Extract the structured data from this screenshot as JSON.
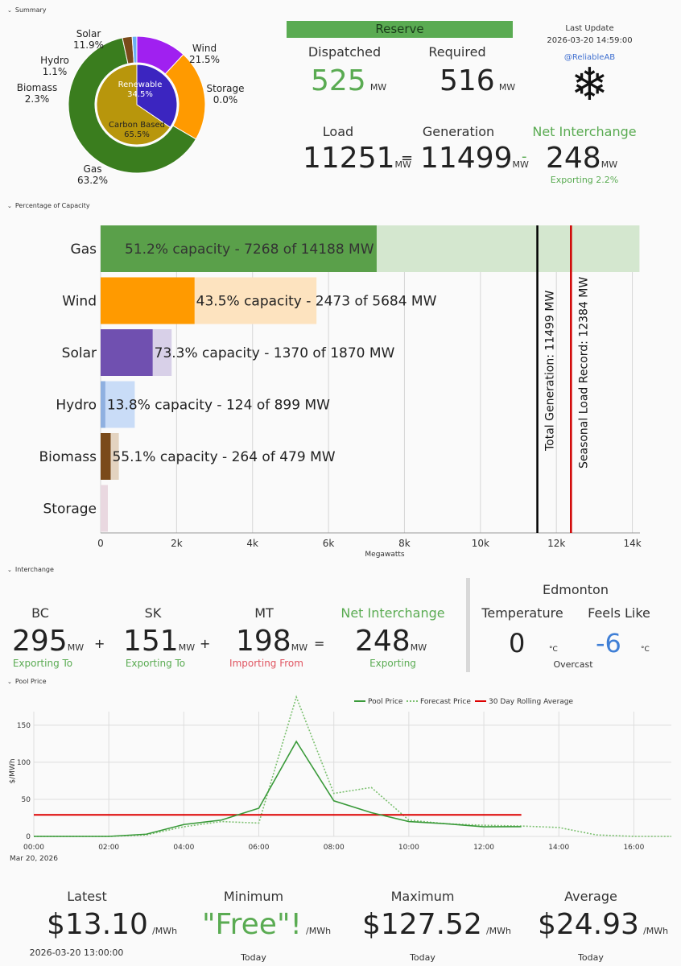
{
  "sections": {
    "summary": "Summary",
    "capacity": "Percentage of Capacity",
    "interchange": "Interchange",
    "pool_price": "Pool Price"
  },
  "donut": {
    "outer": [
      {
        "name": "Solar",
        "pct": "11.9%",
        "value": 11.9,
        "color": "#a020f0"
      },
      {
        "name": "Wind",
        "pct": "21.5%",
        "value": 21.5,
        "color": "#ff9a00"
      },
      {
        "name": "Storage",
        "pct": "0.0%",
        "value": 0.0,
        "color": "#e0c0d0"
      },
      {
        "name": "Gas",
        "pct": "63.2%",
        "value": 63.2,
        "color": "#3a7d1e"
      },
      {
        "name": "Biomass",
        "pct": "2.3%",
        "value": 2.3,
        "color": "#7a4a1a"
      },
      {
        "name": "Hydro",
        "pct": "1.1%",
        "value": 1.1,
        "color": "#6ab0f5"
      }
    ],
    "inner": [
      {
        "name": "Renewable",
        "pct": "34.5%",
        "value": 34.5,
        "color": "#3b25c0"
      },
      {
        "name": "Carbon Based",
        "pct": "65.5%",
        "value": 65.5,
        "color": "#b8960c"
      }
    ]
  },
  "reserve": {
    "banner": "Reserve",
    "dispatched_label": "Dispatched",
    "dispatched_value": "525",
    "required_label": "Required",
    "required_value": "516",
    "unit": "MW"
  },
  "update": {
    "label": "Last Update",
    "timestamp": "2026-03-20 14:59:00",
    "handle": "@ReliableAB",
    "icon": "snowflake-icon"
  },
  "balance": {
    "load_label": "Load",
    "load_value": "11251",
    "generation_label": "Generation",
    "generation_value": "11499",
    "net_label": "Net Interchange",
    "net_value": "248",
    "net_sub": "Exporting 2.2%",
    "eq": "=",
    "minus": "-",
    "unit": "MW"
  },
  "chart_data": [
    {
      "type": "bar",
      "categories": [
        "Gas",
        "Wind",
        "Solar",
        "Hydro",
        "Biomass",
        "Storage"
      ],
      "series": [
        {
          "name": "Output",
          "values": [
            7268,
            2473,
            1370,
            124,
            264,
            0
          ]
        },
        {
          "name": "Capacity",
          "values": [
            14188,
            5684,
            1870,
            899,
            479,
            0
          ]
        }
      ],
      "labels": [
        "51.2% capacity - 7268 of 14188 MW",
        "43.5% capacity - 2473 of 5684 MW",
        "73.3% capacity - 1370 of 1870 MW",
        "13.8% capacity - 124 of 899 MW",
        "55.1% capacity - 264 of 479 MW",
        ""
      ],
      "colors": [
        "#5aa04a",
        "#ff9a00",
        "#7050b0",
        "#8fb0e0",
        "#7a4a1a",
        "#e0c0d0"
      ],
      "capacity_colors": [
        "#d4e7cf",
        "#fde3bf",
        "#d8d0e8",
        "#c9dcf7",
        "#e3d3c0",
        "#e9d8e0"
      ],
      "xlabel": "Megawatts",
      "xticks": [
        "0",
        "2k",
        "4k",
        "6k",
        "8k",
        "10k",
        "12k",
        "14k"
      ],
      "xlim": [
        0,
        14200
      ],
      "vlines": [
        {
          "value": 11499,
          "label": "Total Generation: 11499 MW",
          "color": "#000000"
        },
        {
          "value": 12384,
          "label": "Seasonal Load Record: 12384 MW",
          "color": "#d00000"
        }
      ]
    },
    {
      "type": "line",
      "x": [
        "00:00",
        "01:00",
        "02:00",
        "03:00",
        "04:00",
        "05:00",
        "06:00",
        "07:00",
        "08:00",
        "09:00",
        "10:00",
        "11:00",
        "12:00",
        "13:00",
        "14:00",
        "15:00",
        "16:00",
        "17:00"
      ],
      "xticks": [
        "00:00",
        "02:00",
        "04:00",
        "06:00",
        "08:00",
        "10:00",
        "12:00",
        "14:00",
        "16:00"
      ],
      "xdate": "Mar 20, 2026",
      "ylabel": "$/MWh",
      "yticks": [
        "0",
        "50",
        "100",
        "150"
      ],
      "ylim": [
        0,
        190
      ],
      "legend": "top-center",
      "series": [
        {
          "name": "Pool Price",
          "color": "#3a9a3a",
          "style": "solid",
          "values": [
            0,
            0,
            0,
            3,
            16,
            22,
            38,
            128,
            48,
            32,
            20,
            17,
            13,
            13.1,
            null,
            null,
            null,
            null
          ]
        },
        {
          "name": "Forecast Price",
          "color": "#7cc070",
          "style": "dotted",
          "values": [
            0,
            0,
            0,
            2,
            13,
            20,
            18,
            188,
            58,
            66,
            22,
            17,
            15,
            14,
            12,
            2,
            0,
            0
          ]
        },
        {
          "name": "30 Day Rolling Average",
          "color": "#dd0000",
          "style": "solid",
          "values": [
            29,
            29,
            29,
            29,
            29,
            29,
            29,
            29,
            29,
            29,
            29,
            29,
            29,
            29,
            null,
            null,
            null,
            null
          ]
        }
      ]
    }
  ],
  "interchange": {
    "items": [
      {
        "name": "BC",
        "value": "295",
        "sub": "Exporting To"
      },
      {
        "name": "SK",
        "value": "151",
        "sub": "Exporting To"
      },
      {
        "name": "MT",
        "value": "198",
        "sub": "Importing From"
      }
    ],
    "net_label": "Net Interchange",
    "net_value": "248",
    "net_sub": "Exporting",
    "plus": "+",
    "eq": "=",
    "unit": "MW"
  },
  "weather": {
    "city": "Edmonton",
    "temp_label": "Temperature",
    "temp_value": "0",
    "feels_label": "Feels Like",
    "feels_value": "-6",
    "unit": "°C",
    "condition": "Overcast"
  },
  "price_stats": {
    "latest_label": "Latest",
    "latest_value": "$13.10",
    "latest_sub": "2026-03-20 13:00:00",
    "min_label": "Minimum",
    "min_value": "\"Free\"!",
    "min_sub": "Today",
    "max_label": "Maximum",
    "max_value": "$127.52",
    "max_sub": "Today",
    "avg_label": "Average",
    "avg_value": "$24.93",
    "avg_sub": "Today",
    "unit": "/MWh"
  }
}
